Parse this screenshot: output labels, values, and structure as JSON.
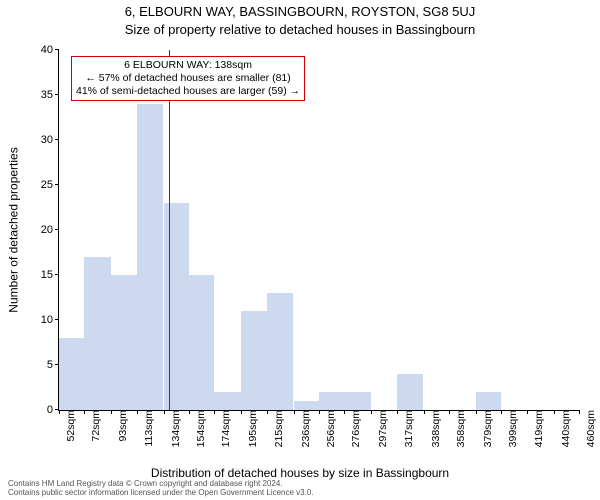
{
  "titles": {
    "line1": "6, ELBOURN WAY, BASSINGBOURN, ROYSTON, SG8 5UJ",
    "line2": "Size of property relative to detached houses in Bassingbourn"
  },
  "axes": {
    "ylabel": "Number of detached properties",
    "xlabel": "Distribution of detached houses by size in Bassingbourn",
    "ylim": [
      0,
      40
    ],
    "ytick_step": 5,
    "xlim_sqm": [
      52,
      460
    ]
  },
  "histogram": {
    "type": "histogram",
    "bins_sqm": [
      52,
      72,
      93,
      113,
      134,
      154,
      174,
      195,
      215,
      236,
      256,
      276,
      297,
      317,
      338,
      358,
      379,
      399,
      419,
      440,
      460
    ],
    "counts": [
      8,
      17,
      15,
      34,
      23,
      15,
      2,
      11,
      13,
      1,
      2,
      2,
      0,
      4,
      0,
      0,
      2,
      0,
      0,
      0
    ],
    "bar_color": "#cdd9ef",
    "bar_border_color": "#ffffff"
  },
  "marker": {
    "sqm": 138,
    "color": "#cc0000"
  },
  "annotation": {
    "line1": "6 ELBOURN WAY: 138sqm",
    "line2": "← 57% of detached houses are smaller (81)",
    "line3": "41% of semi-detached houses are larger (59) →",
    "border_color": "#cc0000"
  },
  "xtick_labels": [
    "52sqm",
    "72sqm",
    "93sqm",
    "113sqm",
    "134sqm",
    "154sqm",
    "174sqm",
    "195sqm",
    "215sqm",
    "236sqm",
    "256sqm",
    "276sqm",
    "297sqm",
    "317sqm",
    "338sqm",
    "358sqm",
    "379sqm",
    "399sqm",
    "419sqm",
    "440sqm",
    "460sqm"
  ],
  "ytick_labels": [
    "0",
    "5",
    "10",
    "15",
    "20",
    "25",
    "30",
    "35",
    "40"
  ],
  "footer": "Contains HM Land Registry data © Crown copyright and database right 2024.\nContains public sector information licensed under the Open Government Licence v3.0."
}
